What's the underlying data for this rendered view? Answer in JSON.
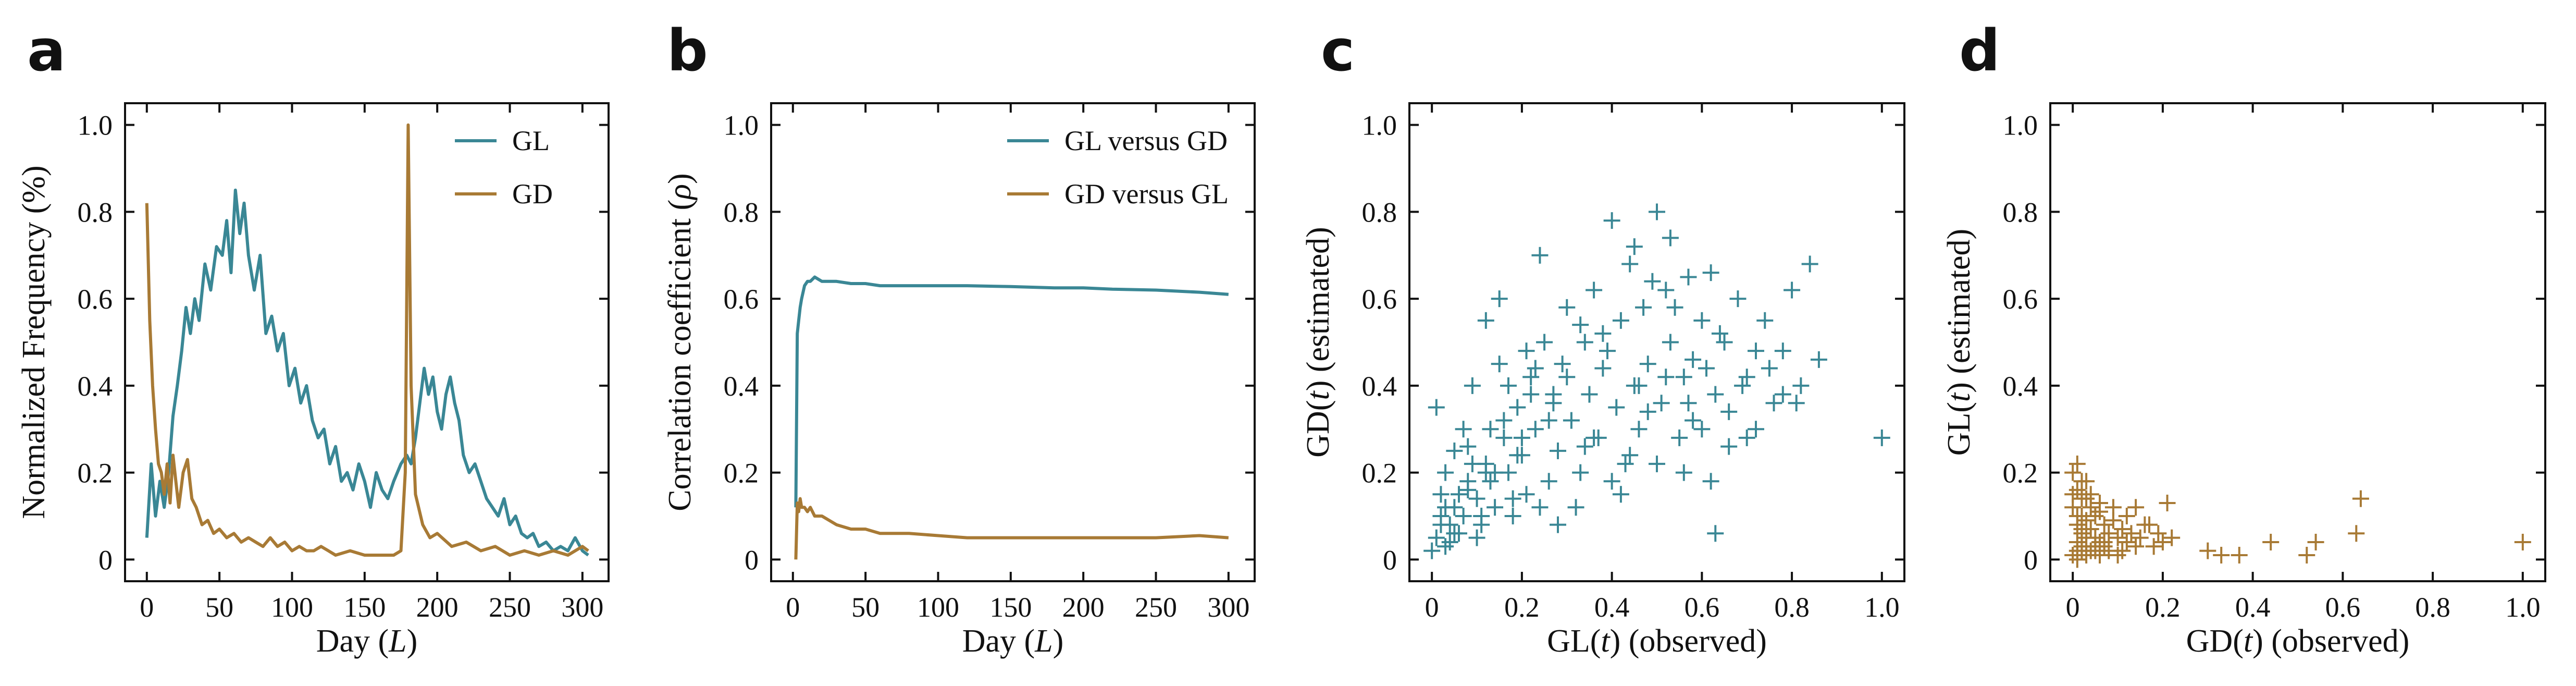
{
  "colors": {
    "GL": "#3a8795",
    "GD": "#a87a35"
  },
  "chart_data": [
    {
      "panel": "a",
      "type": "line",
      "xlabel": {
        "text": "Day (",
        "italic": "L",
        "after": ")"
      },
      "ylabel": {
        "text": "Normalized Frequency (%)",
        "italic": "",
        "after": ""
      },
      "xlim": [
        -15,
        318
      ],
      "ylim": [
        -0.05,
        1.05
      ],
      "xticks": [
        0,
        50,
        100,
        150,
        200,
        250,
        300
      ],
      "yticks": [
        0,
        0.2,
        0.4,
        0.6,
        0.8,
        1.0
      ],
      "ytick_labels": [
        "0",
        "0.2",
        "0.4",
        "0.6",
        "0.8",
        "1.0"
      ],
      "legend": "top-right",
      "series": [
        {
          "name": "GL",
          "color_key": "GL",
          "x": [
            0,
            3,
            6,
            9,
            12,
            15,
            18,
            21,
            24,
            27,
            30,
            33,
            36,
            40,
            44,
            48,
            52,
            55,
            58,
            61,
            64,
            67,
            70,
            74,
            78,
            82,
            86,
            90,
            94,
            98,
            102,
            106,
            110,
            114,
            118,
            122,
            126,
            130,
            134,
            138,
            142,
            146,
            150,
            154,
            158,
            162,
            166,
            170,
            175,
            179,
            182,
            185,
            188,
            191,
            194,
            197,
            200,
            203,
            206,
            209,
            212,
            215,
            218,
            222,
            226,
            230,
            234,
            238,
            242,
            246,
            250,
            254,
            258,
            262,
            266,
            270,
            275,
            280,
            285,
            290,
            295,
            300,
            304
          ],
          "y": [
            0.05,
            0.22,
            0.1,
            0.18,
            0.12,
            0.2,
            0.33,
            0.4,
            0.48,
            0.58,
            0.52,
            0.6,
            0.55,
            0.68,
            0.62,
            0.72,
            0.7,
            0.78,
            0.66,
            0.85,
            0.75,
            0.82,
            0.7,
            0.62,
            0.7,
            0.52,
            0.56,
            0.48,
            0.52,
            0.4,
            0.44,
            0.36,
            0.4,
            0.32,
            0.28,
            0.3,
            0.22,
            0.26,
            0.18,
            0.2,
            0.16,
            0.22,
            0.18,
            0.12,
            0.2,
            0.16,
            0.14,
            0.18,
            0.22,
            0.24,
            0.22,
            0.28,
            0.36,
            0.44,
            0.38,
            0.42,
            0.34,
            0.3,
            0.38,
            0.42,
            0.36,
            0.32,
            0.24,
            0.2,
            0.22,
            0.18,
            0.14,
            0.12,
            0.1,
            0.14,
            0.08,
            0.1,
            0.06,
            0.05,
            0.06,
            0.03,
            0.04,
            0.02,
            0.03,
            0.02,
            0.05,
            0.02,
            0.01
          ]
        },
        {
          "name": "GD",
          "color_key": "GD",
          "x": [
            0,
            2,
            4,
            6,
            8,
            10,
            12,
            14,
            16,
            18,
            20,
            22,
            25,
            28,
            31,
            34,
            38,
            42,
            46,
            50,
            55,
            60,
            65,
            70,
            75,
            80,
            85,
            90,
            95,
            100,
            105,
            110,
            115,
            120,
            125,
            130,
            140,
            150,
            160,
            170,
            175,
            178,
            180,
            182,
            185,
            190,
            195,
            200,
            210,
            220,
            230,
            240,
            250,
            260,
            270,
            280,
            290,
            300,
            304
          ],
          "y": [
            0.82,
            0.55,
            0.4,
            0.3,
            0.22,
            0.2,
            0.15,
            0.22,
            0.13,
            0.24,
            0.18,
            0.12,
            0.2,
            0.23,
            0.14,
            0.12,
            0.08,
            0.09,
            0.06,
            0.07,
            0.05,
            0.06,
            0.04,
            0.05,
            0.04,
            0.03,
            0.05,
            0.03,
            0.04,
            0.02,
            0.03,
            0.02,
            0.02,
            0.03,
            0.02,
            0.01,
            0.02,
            0.01,
            0.01,
            0.01,
            0.02,
            0.2,
            1.0,
            0.4,
            0.15,
            0.08,
            0.05,
            0.06,
            0.03,
            0.04,
            0.02,
            0.03,
            0.01,
            0.02,
            0.01,
            0.02,
            0.01,
            0.03,
            0.02
          ]
        }
      ]
    },
    {
      "panel": "b",
      "type": "line",
      "xlabel": {
        "text": "Day (",
        "italic": "L",
        "after": ")"
      },
      "ylabel": {
        "text": "Correlation coefficient (",
        "italic": "ρ",
        "after": ")"
      },
      "xlim": [
        -15,
        318
      ],
      "ylim": [
        -0.05,
        1.05
      ],
      "xticks": [
        0,
        50,
        100,
        150,
        200,
        250,
        300
      ],
      "yticks": [
        0,
        0.2,
        0.4,
        0.6,
        0.8,
        1.0
      ],
      "ytick_labels": [
        "0",
        "0.2",
        "0.4",
        "0.6",
        "0.8",
        "1.0"
      ],
      "legend": "top-right",
      "series": [
        {
          "name": "GL versus GD",
          "color_key": "GL",
          "x": [
            2,
            3,
            4,
            5,
            6,
            8,
            10,
            12,
            15,
            20,
            25,
            30,
            40,
            50,
            60,
            80,
            100,
            120,
            150,
            180,
            200,
            220,
            250,
            280,
            300
          ],
          "y": [
            0.12,
            0.52,
            0.55,
            0.58,
            0.6,
            0.63,
            0.64,
            0.64,
            0.65,
            0.64,
            0.64,
            0.64,
            0.635,
            0.635,
            0.63,
            0.63,
            0.63,
            0.63,
            0.628,
            0.625,
            0.625,
            0.622,
            0.62,
            0.615,
            0.61
          ]
        },
        {
          "name": "GD versus GL",
          "color_key": "GD",
          "x": [
            2,
            3,
            4,
            5,
            6,
            8,
            10,
            12,
            15,
            20,
            25,
            30,
            40,
            50,
            60,
            80,
            100,
            120,
            150,
            180,
            200,
            220,
            250,
            280,
            300
          ],
          "y": [
            0.0,
            0.13,
            0.11,
            0.14,
            0.12,
            0.12,
            0.11,
            0.12,
            0.1,
            0.1,
            0.09,
            0.08,
            0.07,
            0.07,
            0.06,
            0.06,
            0.055,
            0.05,
            0.05,
            0.05,
            0.05,
            0.05,
            0.05,
            0.055,
            0.05
          ]
        }
      ]
    },
    {
      "panel": "c",
      "type": "scatter",
      "xlabel": {
        "text": "GL(",
        "italic": "t",
        "after": ") (observed)"
      },
      "ylabel": {
        "text": "GD(",
        "italic": "t",
        "after": ") (estimated)"
      },
      "xlim": [
        -0.05,
        1.05
      ],
      "ylim": [
        -0.05,
        1.05
      ],
      "xticks": [
        0,
        0.2,
        0.4,
        0.6,
        0.8,
        1.0
      ],
      "xtick_labels": [
        "0",
        "0.2",
        "0.4",
        "0.6",
        "0.8",
        "1.0"
      ],
      "yticks": [
        0,
        0.2,
        0.4,
        0.6,
        0.8,
        1.0
      ],
      "ytick_labels": [
        "0",
        "0.2",
        "0.4",
        "0.6",
        "0.8",
        "1.0"
      ],
      "series": [
        {
          "name": "",
          "color_key": "GL",
          "x": [
            0.0,
            0.01,
            0.02,
            0.03,
            0.02,
            0.04,
            0.05,
            0.03,
            0.06,
            0.01,
            0.08,
            0.07,
            0.05,
            0.1,
            0.09,
            0.12,
            0.11,
            0.13,
            0.08,
            0.14,
            0.15,
            0.16,
            0.17,
            0.18,
            0.12,
            0.19,
            0.2,
            0.21,
            0.22,
            0.15,
            0.23,
            0.25,
            0.26,
            0.24,
            0.27,
            0.28,
            0.3,
            0.29,
            0.31,
            0.33,
            0.34,
            0.35,
            0.36,
            0.37,
            0.38,
            0.4,
            0.41,
            0.42,
            0.43,
            0.44,
            0.45,
            0.46,
            0.47,
            0.48,
            0.5,
            0.51,
            0.52,
            0.53,
            0.55,
            0.56,
            0.57,
            0.58,
            0.6,
            0.61,
            0.62,
            0.63,
            0.65,
            0.66,
            0.68,
            0.7,
            0.72,
            0.74,
            0.76,
            0.78,
            0.8,
            0.82,
            0.84,
            0.86,
            1.0,
            0.06,
            0.04,
            0.09,
            0.14,
            0.18,
            0.22,
            0.26,
            0.32,
            0.36,
            0.4,
            0.44,
            0.48,
            0.52,
            0.56,
            0.6,
            0.64,
            0.7,
            0.03,
            0.05,
            0.08,
            0.11,
            0.13,
            0.16,
            0.19,
            0.21,
            0.24,
            0.27,
            0.3,
            0.34,
            0.38,
            0.42,
            0.46,
            0.5,
            0.54,
            0.58,
            0.62,
            0.66,
            0.72,
            0.78,
            0.02,
            0.07,
            0.1,
            0.12,
            0.17,
            0.2,
            0.23,
            0.28,
            0.33,
            0.39,
            0.45,
            0.49,
            0.53,
            0.57,
            0.63,
            0.69,
            0.75,
            0.81
          ],
          "y": [
            0.02,
            0.05,
            0.1,
            0.03,
            0.15,
            0.08,
            0.12,
            0.2,
            0.06,
            0.35,
            0.18,
            0.1,
            0.25,
            0.14,
            0.4,
            0.22,
            0.08,
            0.3,
            0.16,
            0.12,
            0.45,
            0.28,
            0.2,
            0.1,
            0.55,
            0.35,
            0.24,
            0.15,
            0.42,
            0.6,
            0.3,
            0.5,
            0.18,
            0.7,
            0.38,
            0.25,
            0.58,
            0.45,
            0.32,
            0.2,
            0.5,
            0.38,
            0.62,
            0.28,
            0.44,
            0.78,
            0.35,
            0.55,
            0.22,
            0.68,
            0.4,
            0.3,
            0.58,
            0.45,
            0.8,
            0.36,
            0.62,
            0.5,
            0.28,
            0.42,
            0.65,
            0.32,
            0.55,
            0.44,
            0.66,
            0.38,
            0.5,
            0.26,
            0.6,
            0.42,
            0.3,
            0.55,
            0.36,
            0.48,
            0.62,
            0.4,
            0.68,
            0.46,
            0.28,
            0.15,
            0.04,
            0.22,
            0.2,
            0.14,
            0.38,
            0.32,
            0.12,
            0.28,
            0.18,
            0.24,
            0.34,
            0.42,
            0.2,
            0.3,
            0.52,
            0.28,
            0.12,
            0.06,
            0.26,
            0.1,
            0.18,
            0.32,
            0.24,
            0.48,
            0.12,
            0.36,
            0.42,
            0.26,
            0.52,
            0.15,
            0.4,
            0.22,
            0.58,
            0.46,
            0.18,
            0.34,
            0.48,
            0.38,
            0.08,
            0.3,
            0.05,
            0.2,
            0.4,
            0.28,
            0.44,
            0.08,
            0.54,
            0.48,
            0.72,
            0.64,
            0.74,
            0.36,
            0.06,
            0.4,
            0.44,
            0.36
          ]
        }
      ]
    },
    {
      "panel": "d",
      "type": "scatter",
      "xlabel": {
        "text": "GD(",
        "italic": "t",
        "after": ") (observed)"
      },
      "ylabel": {
        "text": "GL(",
        "italic": "t",
        "after": ") (estimated)"
      },
      "xlim": [
        -0.05,
        1.05
      ],
      "ylim": [
        -0.05,
        1.05
      ],
      "xticks": [
        0,
        0.2,
        0.4,
        0.6,
        0.8,
        1.0
      ],
      "xtick_labels": [
        "0",
        "0.2",
        "0.4",
        "0.6",
        "0.8",
        "1.0"
      ],
      "yticks": [
        0,
        0.2,
        0.4,
        0.6,
        0.8,
        1.0
      ],
      "ytick_labels": [
        "0",
        "0.2",
        "0.4",
        "0.6",
        "0.8",
        "1.0"
      ],
      "series": [
        {
          "name": "",
          "color_key": "GD",
          "x": [
            0.0,
            0.0,
            0.01,
            0.01,
            0.01,
            0.02,
            0.02,
            0.02,
            0.03,
            0.03,
            0.03,
            0.04,
            0.04,
            0.05,
            0.05,
            0.06,
            0.06,
            0.07,
            0.07,
            0.08,
            0.09,
            0.1,
            0.11,
            0.12,
            0.13,
            0.14,
            0.15,
            0.16,
            0.18,
            0.19,
            0.2,
            0.22,
            0.01,
            0.02,
            0.03,
            0.04,
            0.05,
            0.06,
            0.08,
            0.1,
            0.01,
            0.02,
            0.03,
            0.0,
            0.01,
            0.02,
            0.04,
            0.06,
            0.09,
            0.12,
            0.3,
            0.33,
            0.37,
            0.44,
            0.52,
            0.54,
            0.63,
            0.64,
            1.0,
            0.0,
            0.01,
            0.02,
            0.03,
            0.05,
            0.07,
            0.11,
            0.14,
            0.17,
            0.21
          ],
          "y": [
            0.2,
            0.12,
            0.16,
            0.08,
            0.04,
            0.18,
            0.1,
            0.06,
            0.14,
            0.09,
            0.03,
            0.12,
            0.07,
            0.1,
            0.05,
            0.11,
            0.04,
            0.08,
            0.03,
            0.06,
            0.09,
            0.05,
            0.07,
            0.04,
            0.06,
            0.03,
            0.05,
            0.08,
            0.03,
            0.06,
            0.04,
            0.05,
            0.02,
            0.03,
            0.01,
            0.02,
            0.03,
            0.01,
            0.02,
            0.01,
            0.22,
            0.14,
            0.18,
            0.15,
            0.1,
            0.07,
            0.15,
            0.13,
            0.12,
            0.1,
            0.02,
            0.01,
            0.01,
            0.04,
            0.01,
            0.04,
            0.06,
            0.14,
            0.04,
            0.01,
            0.0,
            0.02,
            0.05,
            0.02,
            0.04,
            0.02,
            0.12,
            0.08,
            0.13
          ]
        }
      ]
    }
  ]
}
